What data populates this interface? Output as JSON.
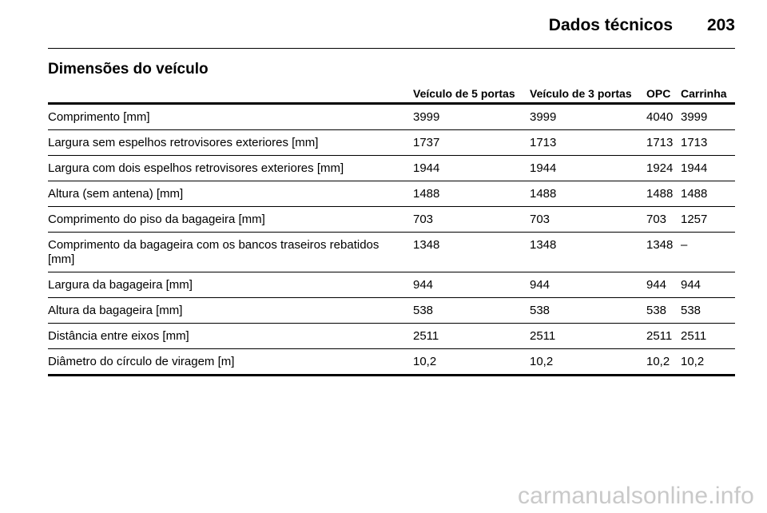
{
  "header": {
    "title": "Dados técnicos",
    "page_number": "203"
  },
  "section": {
    "title": "Dimensões do veículo"
  },
  "table": {
    "columns": [
      "",
      "Veículo de 5 portas",
      "Veículo de 3 portas",
      "OPC",
      "Carrinha"
    ],
    "rows": [
      [
        "Comprimento [mm]",
        "3999",
        "3999",
        "4040",
        "3999"
      ],
      [
        "Largura sem espelhos retrovisores exteriores [mm]",
        "1737",
        "1713",
        "1713",
        "1713"
      ],
      [
        "Largura com dois espelhos retrovisores exteriores [mm]",
        "1944",
        "1944",
        "1924",
        "1944"
      ],
      [
        "Altura (sem antena) [mm]",
        "1488",
        "1488",
        "1488",
        "1488"
      ],
      [
        "Comprimento do piso da bagageira [mm]",
        "703",
        "703",
        "703",
        "1257"
      ],
      [
        "Comprimento da bagageira com os bancos traseiros rebatidos [mm]",
        "1348",
        "1348",
        "1348",
        "–"
      ],
      [
        "Largura da bagageira [mm]",
        "944",
        "944",
        "944",
        "944"
      ],
      [
        "Altura da bagageira [mm]",
        "538",
        "538",
        "538",
        "538"
      ],
      [
        "Distância entre eixos [mm]",
        "2511",
        "2511",
        "2511",
        "2511"
      ],
      [
        "Diâmetro do círculo de viragem [m]",
        "10,2",
        "10,2",
        "10,2",
        "10,2"
      ]
    ]
  },
  "watermark": "carmanualsonline.info"
}
